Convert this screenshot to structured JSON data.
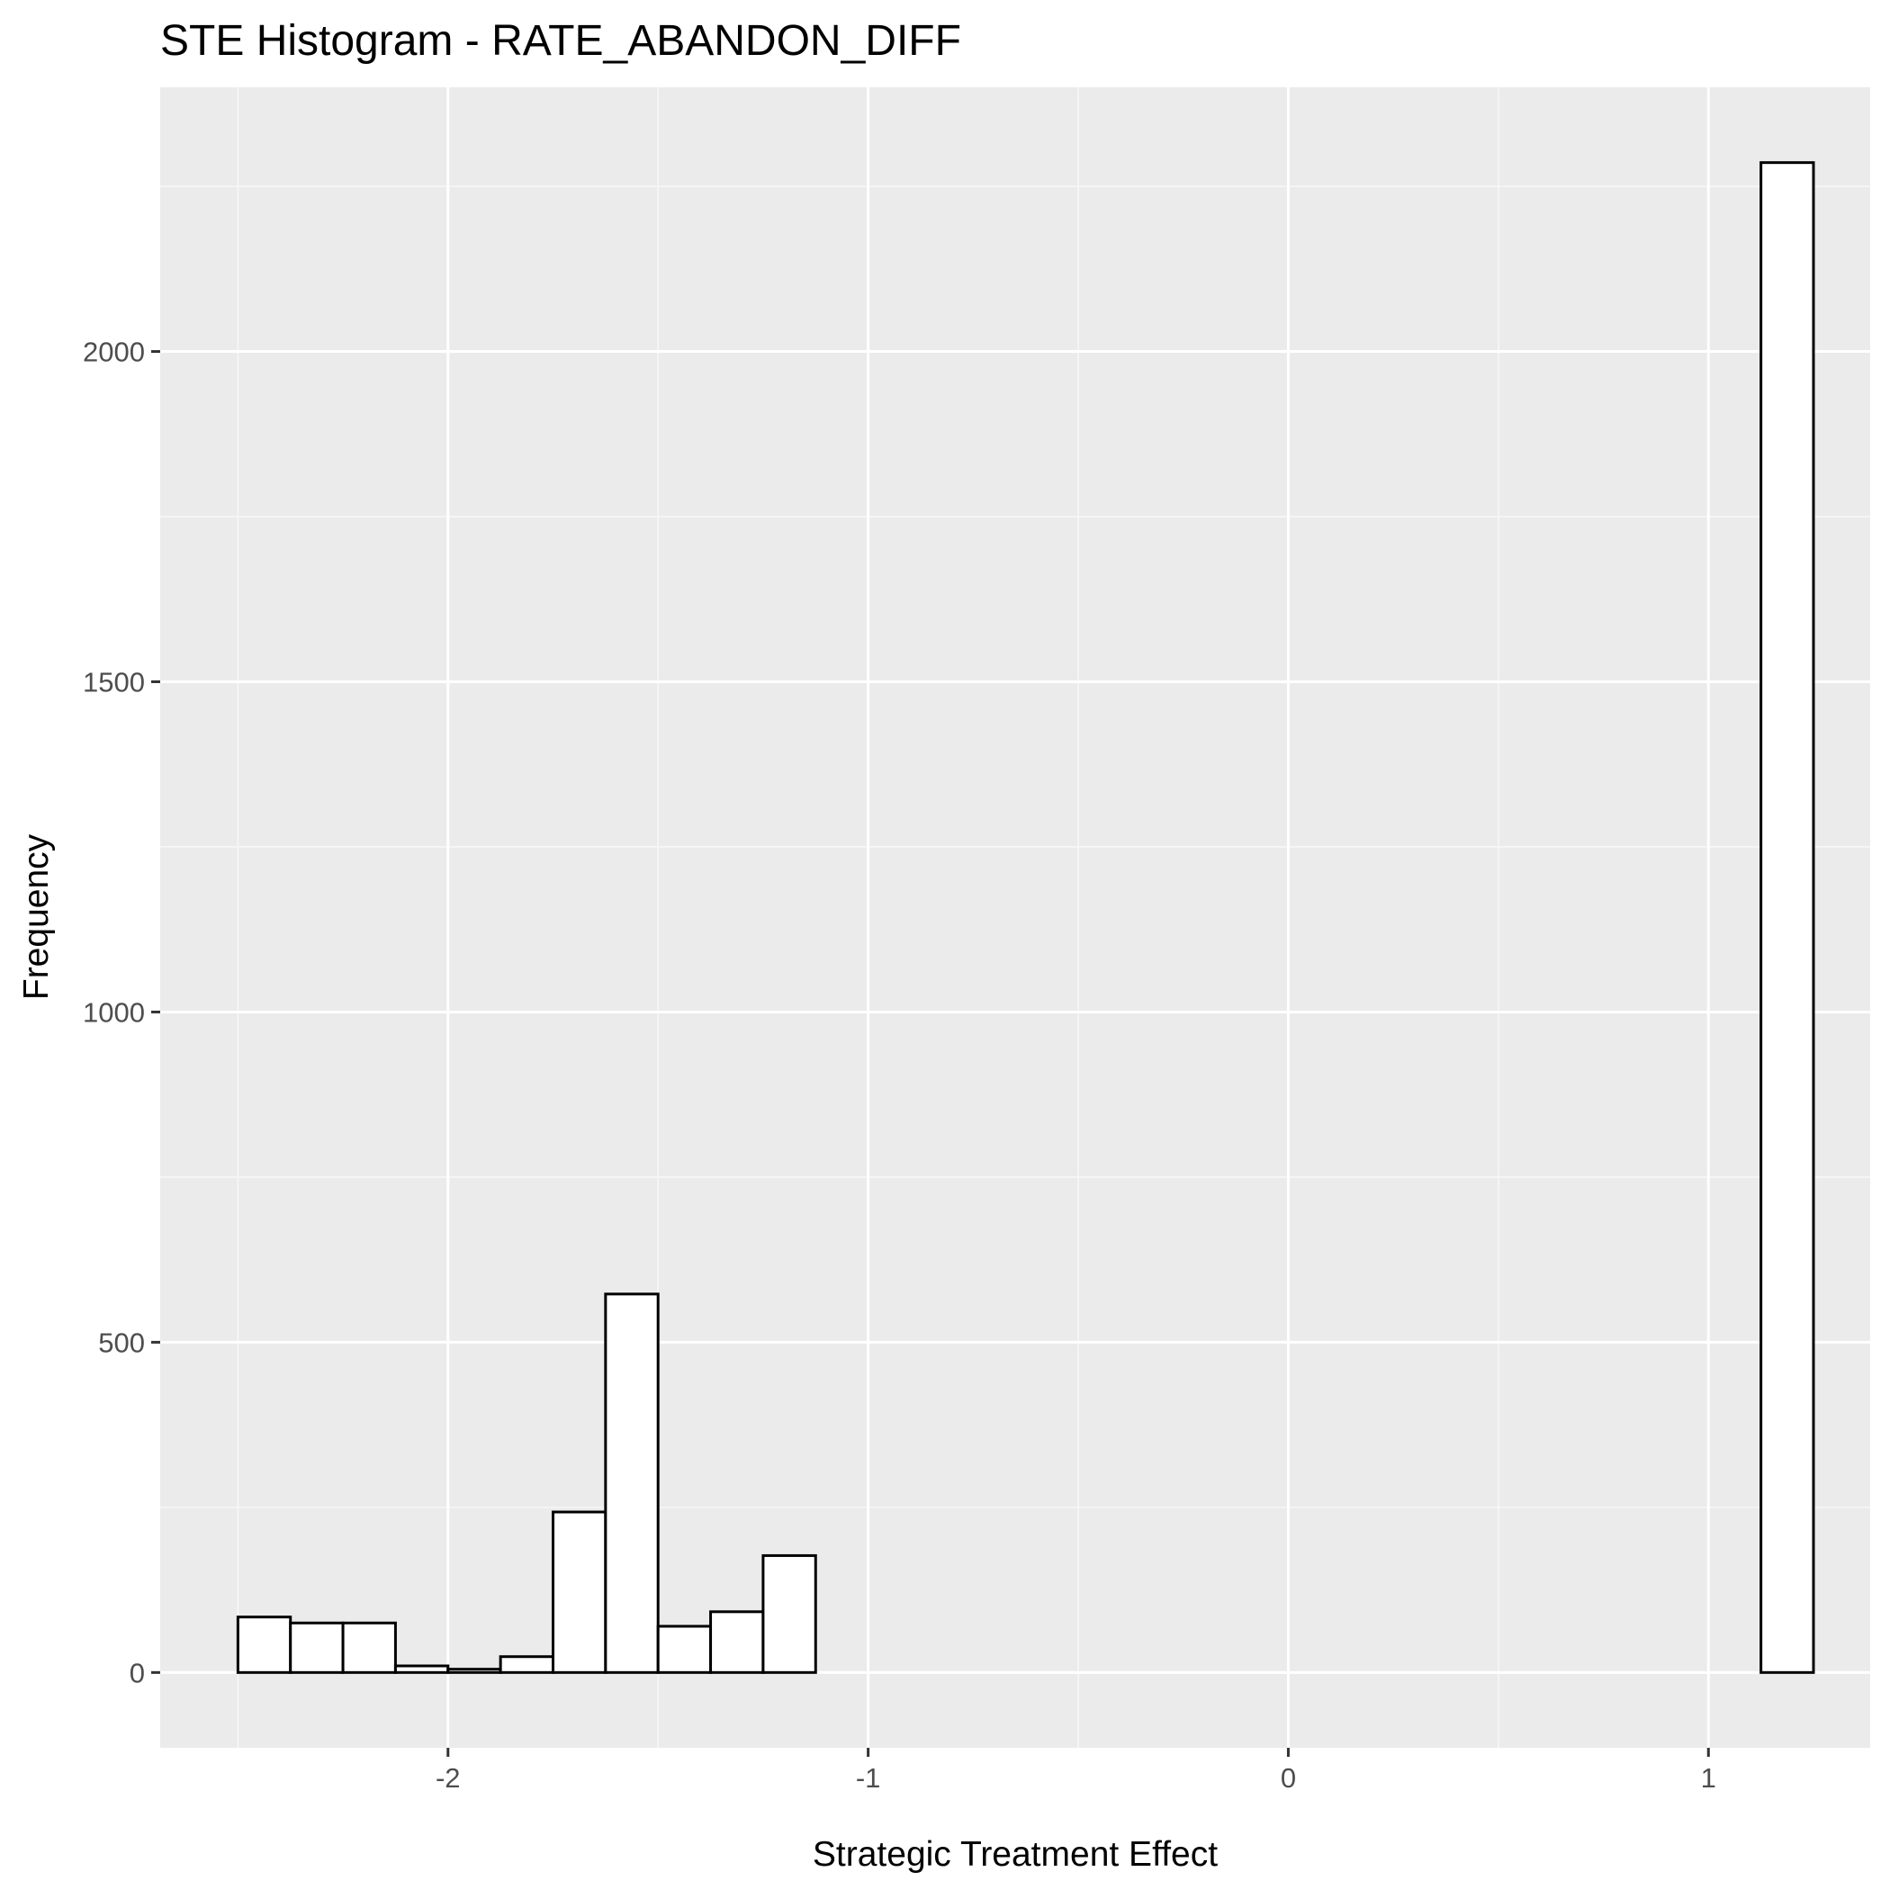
{
  "chart_data": {
    "type": "bar",
    "title": "STE Histogram -  RATE_ABANDON_DIFF",
    "xlabel": "Strategic Treatment Effect",
    "ylabel": "Frequency",
    "xlim": [
      -2.685,
      1.385
    ],
    "ylim": [
      -114,
      2400
    ],
    "x_ticks": [
      -2,
      -1,
      0,
      1
    ],
    "x_tick_labels": [
      "-2",
      "-1",
      "0",
      "1"
    ],
    "y_ticks": [
      0,
      500,
      1000,
      1500,
      2000
    ],
    "y_tick_labels": [
      "0",
      "500",
      "1000",
      "1500",
      "2000"
    ],
    "bin_width": 0.125,
    "bins_start": -2.5,
    "values": [
      84,
      75,
      75,
      10,
      5,
      24,
      243,
      573,
      70,
      92,
      177,
      0,
      0,
      0,
      0,
      0,
      0,
      0,
      0,
      0,
      0,
      0,
      0,
      0,
      0,
      0,
      0,
      0,
      0,
      2286
    ],
    "grid": true,
    "legend": "none",
    "colors": {
      "panel_background": "#ebebeb",
      "grid_major": "#ffffff",
      "grid_minor": "#f7f7f7",
      "bar_fill": "#ffffff",
      "bar_outline": "#000000",
      "tick_label": "#4d4d4d",
      "tick_mark": "#333333"
    }
  }
}
